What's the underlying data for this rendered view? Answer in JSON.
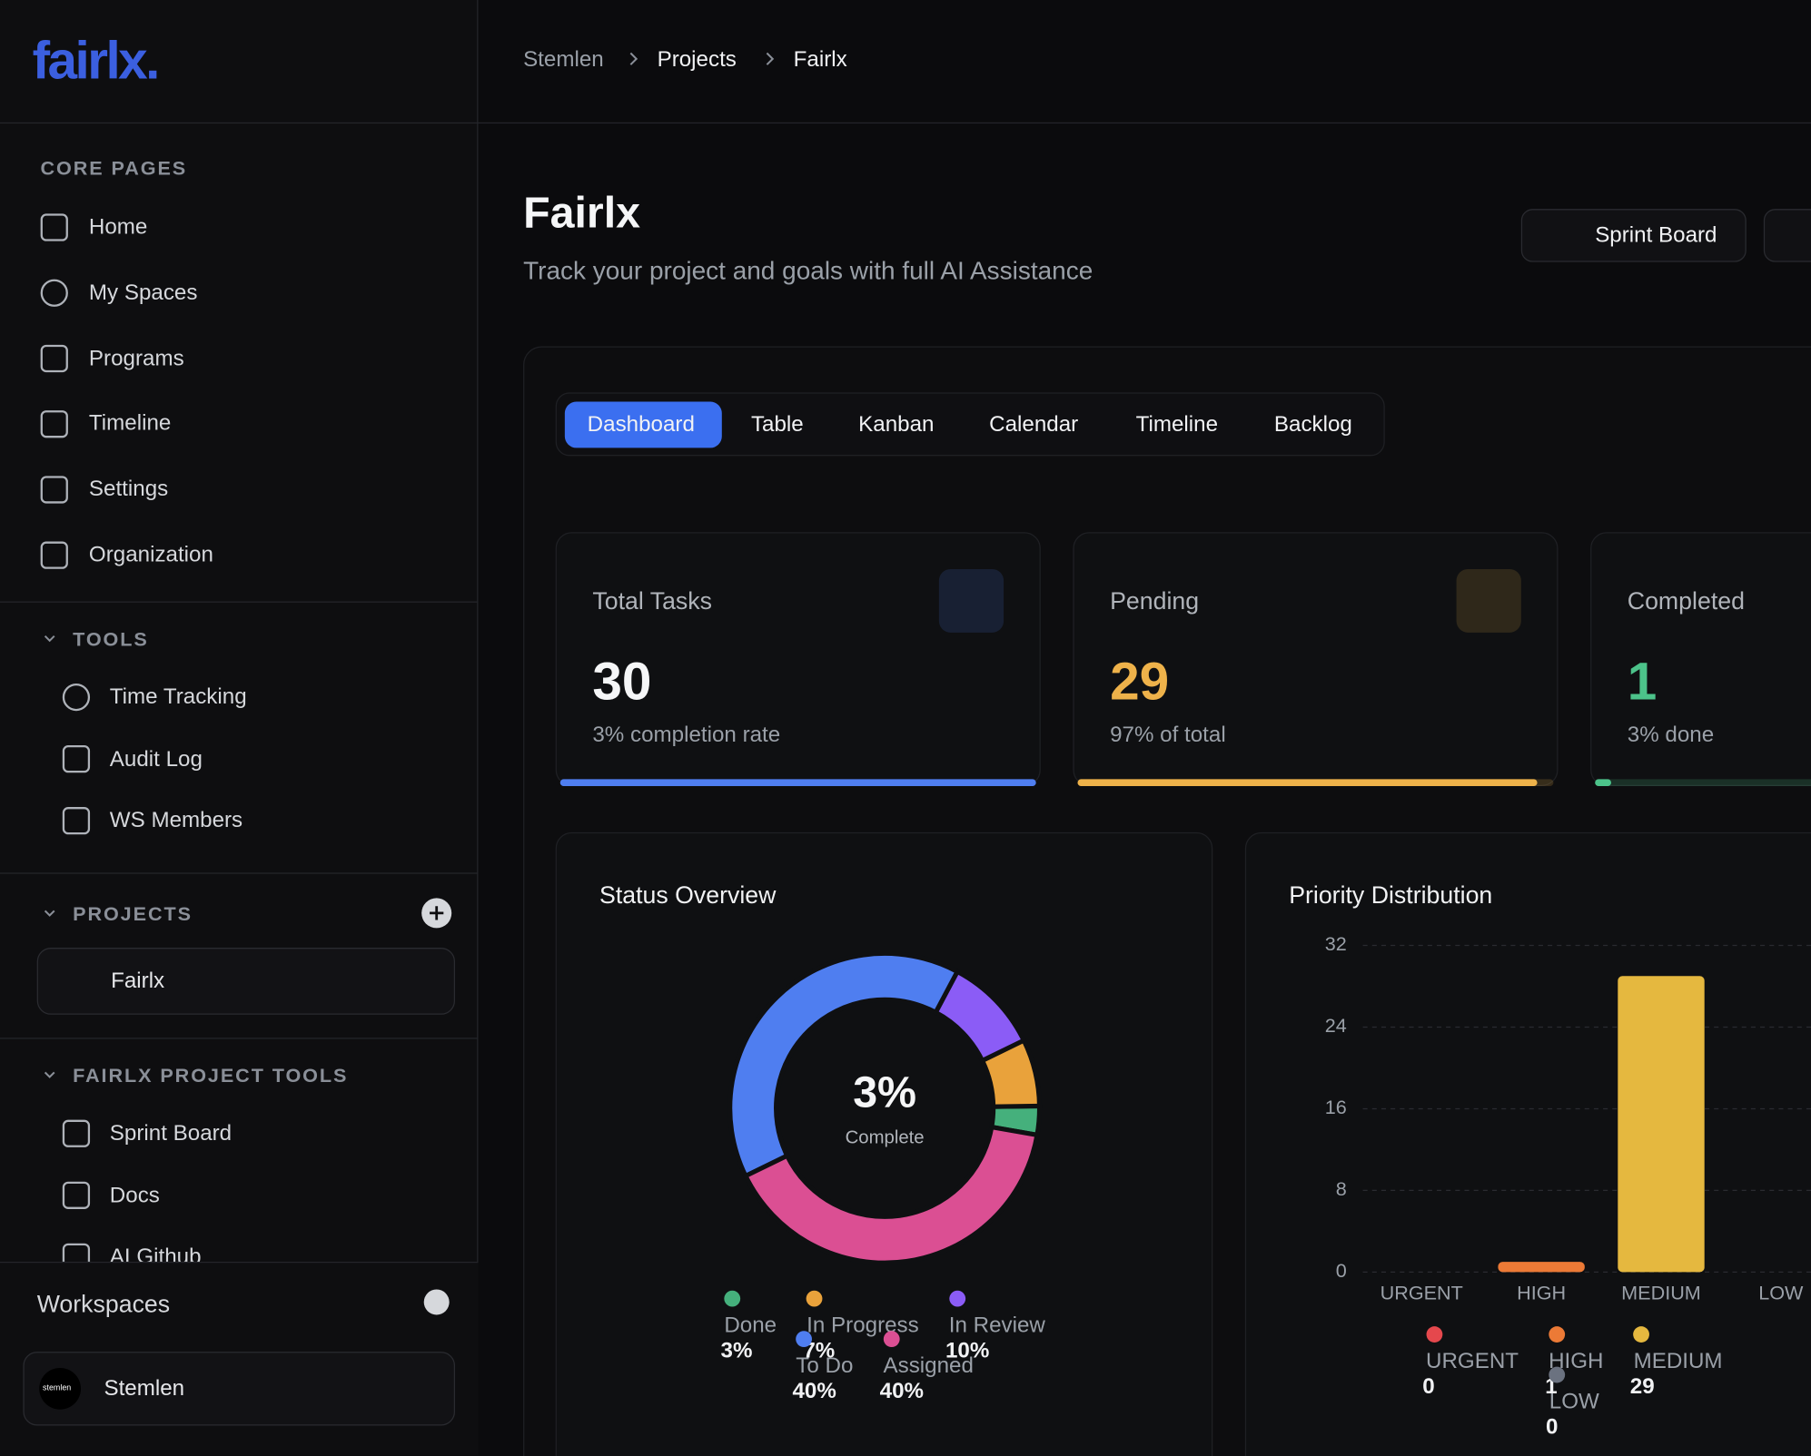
{
  "sidebar": {
    "logo": "fairlx.",
    "core_title": "CORE PAGES",
    "core_items": [
      "Home",
      "My Spaces",
      "Programs",
      "Timeline",
      "Settings",
      "Organization"
    ],
    "tools_title": "TOOLS",
    "tools_items": [
      "Time Tracking",
      "Audit Log",
      "WS Members"
    ],
    "projects_title": "PROJECTS",
    "project": {
      "icon": "fx.",
      "name": "Fairlx"
    },
    "project_tools_title": "FAIRLX PROJECT TOOLS",
    "project_tools_items": [
      "Sprint Board",
      "Docs",
      "AI Github"
    ],
    "workspaces_title": "Workspaces",
    "workspace": {
      "icon": "stemlen",
      "name": "Stemlen"
    }
  },
  "breadcrumb": [
    "Stemlen",
    "Projects",
    "Fairlx"
  ],
  "header": {
    "title": "Fairlx",
    "subtitle": "Track your project and goals with full AI Assistance",
    "actions": [
      "Sprint Board"
    ]
  },
  "tabs": [
    "Dashboard",
    "Table",
    "Kanban",
    "Calendar",
    "Timeline",
    "Backlog"
  ],
  "stats": [
    {
      "title": "Total Tasks",
      "value": 30,
      "note": "3% completion rate",
      "color": "#4f7ef0"
    },
    {
      "title": "Pending",
      "value": 29,
      "note": "97% of total",
      "color": "#eeb24a"
    },
    {
      "title": "Completed",
      "value": 1,
      "note": "3% done",
      "color": "#4cc38a"
    }
  ],
  "chart_data": [
    {
      "type": "donut",
      "title": "Status Overview",
      "center_label": "Complete",
      "categories": [
        "Done",
        "In Progress",
        "In Review",
        "To Do",
        "Assigned"
      ],
      "values": [
        3,
        7,
        10,
        40,
        40
      ],
      "value_labels": [
        "3%",
        "7%",
        "10%",
        "40%",
        "40%"
      ],
      "colors": [
        "#45b07c",
        "#e9a23b",
        "#8b5cf6",
        "#4f7ef0",
        "#db4f93"
      ]
    },
    {
      "type": "bar",
      "title": "Priority Distribution",
      "categories": [
        "URGENT",
        "HIGH",
        "MEDIUM",
        "LOW"
      ],
      "values": [
        0,
        1,
        29,
        0
      ],
      "colors": [
        "#e5484d",
        "#ec7a36",
        "#e5b83f",
        "#6b7280"
      ],
      "ylim": [
        0,
        32
      ],
      "yticks": [
        0,
        8,
        16,
        24,
        32
      ],
      "grid": true
    }
  ]
}
